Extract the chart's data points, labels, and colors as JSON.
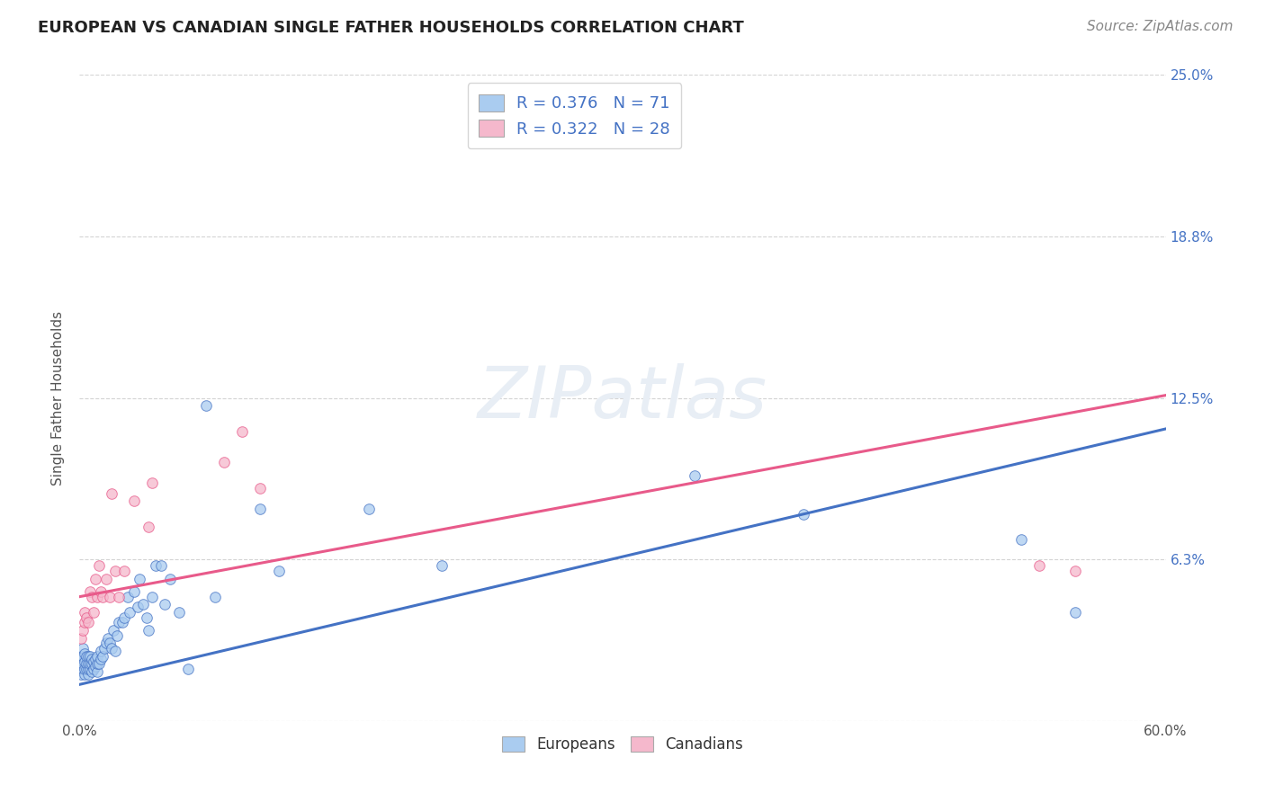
{
  "title": "EUROPEAN VS CANADIAN SINGLE FATHER HOUSEHOLDS CORRELATION CHART",
  "source": "Source: ZipAtlas.com",
  "ylabel": "Single Father Households",
  "watermark": "ZIPatlas",
  "bg_color": "#ffffff",
  "grid_color": "#d0d0d0",
  "xlim": [
    0.0,
    0.6
  ],
  "ylim": [
    0.0,
    0.25
  ],
  "xtick_positions": [
    0.0,
    0.1,
    0.2,
    0.3,
    0.4,
    0.5,
    0.6
  ],
  "xticklabels": [
    "0.0%",
    "",
    "",
    "",
    "",
    "",
    "60.0%"
  ],
  "ytick_values": [
    0.0,
    0.0625,
    0.125,
    0.1875,
    0.25
  ],
  "ytick_labels": [
    "",
    "6.3%",
    "12.5%",
    "18.8%",
    "25.0%"
  ],
  "europeans_color": "#aaccf0",
  "canadians_color": "#f5b8cc",
  "trend_euro_color": "#4472c4",
  "trend_cana_color": "#e85a8a",
  "legend_euro_label": "R = 0.376   N = 71",
  "legend_cana_label": "R = 0.322   N = 28",
  "legend_label_euro": "Europeans",
  "legend_label_cana": "Canadians",
  "euro_intercept": 0.014,
  "euro_slope": 0.165,
  "cana_intercept": 0.048,
  "cana_slope": 0.13,
  "euro_x": [
    0.001,
    0.001,
    0.001,
    0.002,
    0.002,
    0.002,
    0.002,
    0.003,
    0.003,
    0.003,
    0.003,
    0.004,
    0.004,
    0.004,
    0.005,
    0.005,
    0.005,
    0.005,
    0.006,
    0.006,
    0.006,
    0.007,
    0.007,
    0.007,
    0.008,
    0.008,
    0.009,
    0.009,
    0.01,
    0.01,
    0.01,
    0.011,
    0.012,
    0.012,
    0.013,
    0.014,
    0.015,
    0.016,
    0.017,
    0.018,
    0.019,
    0.02,
    0.021,
    0.022,
    0.024,
    0.025,
    0.027,
    0.028,
    0.03,
    0.032,
    0.033,
    0.035,
    0.037,
    0.038,
    0.04,
    0.042,
    0.045,
    0.047,
    0.05,
    0.055,
    0.06,
    0.07,
    0.075,
    0.1,
    0.11,
    0.16,
    0.2,
    0.34,
    0.4,
    0.52,
    0.55
  ],
  "euro_y": [
    0.018,
    0.022,
    0.025,
    0.02,
    0.022,
    0.025,
    0.028,
    0.018,
    0.02,
    0.023,
    0.026,
    0.02,
    0.022,
    0.025,
    0.018,
    0.02,
    0.022,
    0.025,
    0.02,
    0.022,
    0.025,
    0.019,
    0.022,
    0.024,
    0.02,
    0.023,
    0.021,
    0.024,
    0.019,
    0.022,
    0.025,
    0.022,
    0.024,
    0.027,
    0.025,
    0.028,
    0.03,
    0.032,
    0.03,
    0.028,
    0.035,
    0.027,
    0.033,
    0.038,
    0.038,
    0.04,
    0.048,
    0.042,
    0.05,
    0.044,
    0.055,
    0.045,
    0.04,
    0.035,
    0.048,
    0.06,
    0.06,
    0.045,
    0.055,
    0.042,
    0.02,
    0.122,
    0.048,
    0.082,
    0.058,
    0.082,
    0.06,
    0.095,
    0.08,
    0.07,
    0.042
  ],
  "cana_x": [
    0.001,
    0.002,
    0.003,
    0.003,
    0.004,
    0.005,
    0.006,
    0.007,
    0.008,
    0.009,
    0.01,
    0.011,
    0.012,
    0.013,
    0.015,
    0.017,
    0.018,
    0.02,
    0.022,
    0.025,
    0.03,
    0.038,
    0.04,
    0.08,
    0.09,
    0.1,
    0.53,
    0.55
  ],
  "cana_y": [
    0.032,
    0.035,
    0.038,
    0.042,
    0.04,
    0.038,
    0.05,
    0.048,
    0.042,
    0.055,
    0.048,
    0.06,
    0.05,
    0.048,
    0.055,
    0.048,
    0.088,
    0.058,
    0.048,
    0.058,
    0.085,
    0.075,
    0.092,
    0.1,
    0.112,
    0.09,
    0.06,
    0.058
  ],
  "title_fontsize": 13,
  "axis_fontsize": 11,
  "tick_fontsize": 11,
  "source_fontsize": 11
}
